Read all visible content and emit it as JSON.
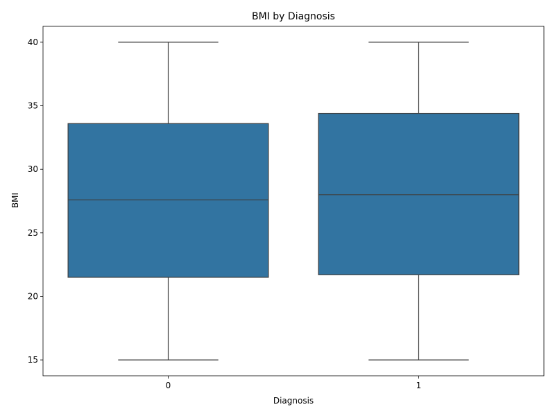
{
  "chart_data": {
    "type": "box",
    "title": "BMI by Diagnosis",
    "xlabel": "Diagnosis",
    "ylabel": "BMI",
    "categories": [
      "0",
      "1"
    ],
    "boxes": [
      {
        "category": "0",
        "whisker_low": 15.0,
        "q1": 21.5,
        "median": 27.6,
        "q3": 33.6,
        "whisker_high": 40.0
      },
      {
        "category": "1",
        "whisker_low": 15.0,
        "q1": 21.7,
        "median": 28.0,
        "q3": 34.4,
        "whisker_high": 40.0
      }
    ],
    "ylim": [
      13.75,
      41.25
    ],
    "yticks": [
      15,
      20,
      25,
      30,
      35,
      40
    ],
    "grid": false,
    "colors": {
      "box_fill": "#3274a1",
      "line": "#3f3f3f",
      "frame": "#000000"
    }
  }
}
